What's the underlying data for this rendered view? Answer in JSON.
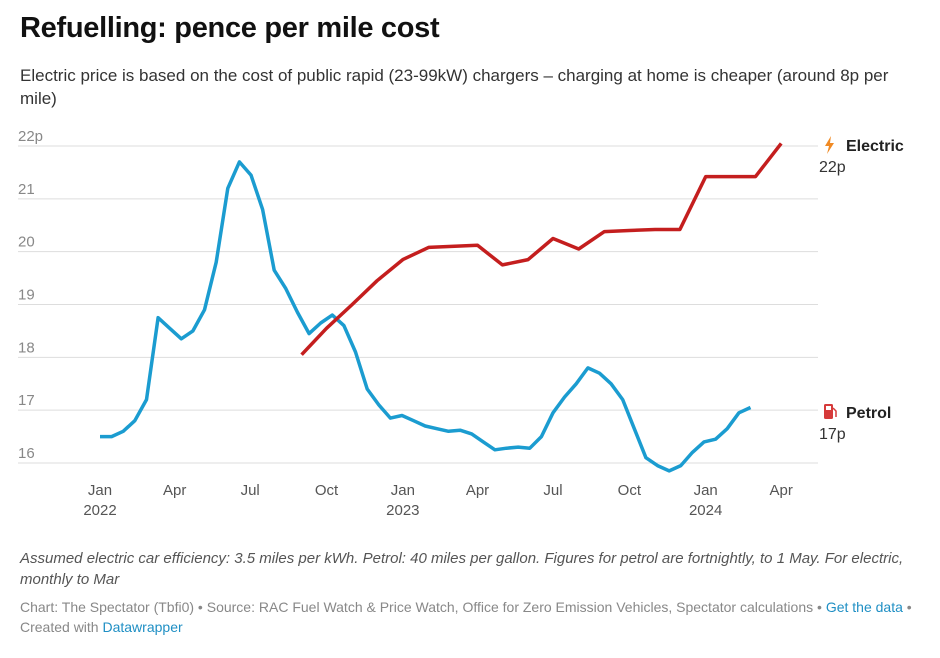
{
  "title": "Refuelling: pence per mile cost",
  "subtitle": "Electric price is based on the cost of public rapid (23-99kW) chargers – charging at home is cheaper (around 8p per mile)",
  "notes": "Assumed electric car efficiency: 3.5 miles per kWh. Petrol: 40 miles per gallon. Figures for petrol are fortnightly, to 1 May. For electric, monthly to Mar",
  "footer": {
    "chart_credit": "Chart: The Spectator (Tbfi0)",
    "sep1": " • ",
    "source": "Source: RAC Fuel Watch & Price Watch, Office for Zero Emission Vehicles, Spectator calculations",
    "sep2": " • ",
    "get_data": "Get the data",
    "sep3": " • ",
    "created_with": "Created with ",
    "datawrapper": "Datawrapper"
  },
  "chart_data": {
    "type": "line",
    "title": "Refuelling: pence per mile cost",
    "ylim": [
      16,
      22
    ],
    "y_ticks": [
      {
        "value": 22,
        "label": "22p"
      },
      {
        "value": 21,
        "label": "21"
      },
      {
        "value": 20,
        "label": "20"
      },
      {
        "value": 19,
        "label": "19"
      },
      {
        "value": 18,
        "label": "18"
      },
      {
        "value": 17,
        "label": "17"
      },
      {
        "value": 16,
        "label": "16"
      }
    ],
    "x_ticks": [
      {
        "date": "2022-01-01",
        "label": "Jan",
        "year": "2022"
      },
      {
        "date": "2022-04-01",
        "label": "Apr",
        "year": ""
      },
      {
        "date": "2022-07-01",
        "label": "Jul",
        "year": ""
      },
      {
        "date": "2022-10-01",
        "label": "Oct",
        "year": ""
      },
      {
        "date": "2023-01-01",
        "label": "Jan",
        "year": "2023"
      },
      {
        "date": "2023-04-01",
        "label": "Apr",
        "year": ""
      },
      {
        "date": "2023-07-01",
        "label": "Jul",
        "year": ""
      },
      {
        "date": "2023-10-01",
        "label": "Oct",
        "year": ""
      },
      {
        "date": "2024-01-01",
        "label": "Jan",
        "year": "2024"
      },
      {
        "date": "2024-04-01",
        "label": "Apr",
        "year": ""
      }
    ],
    "grid": true,
    "series": [
      {
        "name": "Petrol",
        "end_label": "17p",
        "color": "#1b9cd0",
        "icon": "fuel-pump-icon",
        "points": [
          [
            "2022-01-01",
            16.5
          ],
          [
            "2022-01-15",
            16.5
          ],
          [
            "2022-01-29",
            16.6
          ],
          [
            "2022-02-12",
            16.8
          ],
          [
            "2022-02-26",
            17.2
          ],
          [
            "2022-03-12",
            18.75
          ],
          [
            "2022-03-26",
            18.55
          ],
          [
            "2022-04-09",
            18.35
          ],
          [
            "2022-04-23",
            18.5
          ],
          [
            "2022-05-07",
            18.9
          ],
          [
            "2022-05-21",
            19.8
          ],
          [
            "2022-06-04",
            21.2
          ],
          [
            "2022-06-18",
            21.7
          ],
          [
            "2022-07-02",
            21.45
          ],
          [
            "2022-07-16",
            20.8
          ],
          [
            "2022-07-30",
            19.65
          ],
          [
            "2022-08-13",
            19.3
          ],
          [
            "2022-08-27",
            18.85
          ],
          [
            "2022-09-10",
            18.45
          ],
          [
            "2022-09-24",
            18.65
          ],
          [
            "2022-10-08",
            18.8
          ],
          [
            "2022-10-22",
            18.6
          ],
          [
            "2022-11-05",
            18.1
          ],
          [
            "2022-11-19",
            17.4
          ],
          [
            "2022-12-03",
            17.1
          ],
          [
            "2022-12-17",
            16.85
          ],
          [
            "2022-12-31",
            16.9
          ],
          [
            "2023-01-14",
            16.8
          ],
          [
            "2023-01-28",
            16.7
          ],
          [
            "2023-02-11",
            16.65
          ],
          [
            "2023-02-25",
            16.6
          ],
          [
            "2023-03-11",
            16.62
          ],
          [
            "2023-03-25",
            16.55
          ],
          [
            "2023-04-08",
            16.4
          ],
          [
            "2023-04-22",
            16.25
          ],
          [
            "2023-05-06",
            16.28
          ],
          [
            "2023-05-20",
            16.3
          ],
          [
            "2023-06-03",
            16.28
          ],
          [
            "2023-06-17",
            16.5
          ],
          [
            "2023-07-01",
            16.95
          ],
          [
            "2023-07-15",
            17.25
          ],
          [
            "2023-07-29",
            17.5
          ],
          [
            "2023-08-12",
            17.8
          ],
          [
            "2023-08-26",
            17.7
          ],
          [
            "2023-09-09",
            17.5
          ],
          [
            "2023-09-23",
            17.2
          ],
          [
            "2023-10-07",
            16.65
          ],
          [
            "2023-10-21",
            16.1
          ],
          [
            "2023-11-04",
            15.95
          ],
          [
            "2023-11-18",
            15.85
          ],
          [
            "2023-12-02",
            15.95
          ],
          [
            "2023-12-16",
            16.2
          ],
          [
            "2023-12-30",
            16.4
          ],
          [
            "2024-01-13",
            16.45
          ],
          [
            "2024-01-27",
            16.65
          ],
          [
            "2024-02-10",
            16.95
          ],
          [
            "2024-02-24",
            17.05
          ]
        ]
      },
      {
        "name": "Electric",
        "end_label": "22p",
        "color": "#c41e1e",
        "icon": "lightning-bolt-icon",
        "points": [
          [
            "2022-09-01",
            18.05
          ],
          [
            "2022-10-01",
            18.55
          ],
          [
            "2022-11-01",
            19.0
          ],
          [
            "2022-12-01",
            19.45
          ],
          [
            "2023-01-01",
            19.85
          ],
          [
            "2023-02-01",
            20.08
          ],
          [
            "2023-03-01",
            20.1
          ],
          [
            "2023-04-01",
            20.12
          ],
          [
            "2023-05-01",
            19.75
          ],
          [
            "2023-06-01",
            19.85
          ],
          [
            "2023-07-01",
            20.25
          ],
          [
            "2023-08-01",
            20.05
          ],
          [
            "2023-09-01",
            20.38
          ],
          [
            "2023-10-01",
            20.4
          ],
          [
            "2023-11-01",
            20.42
          ],
          [
            "2023-12-01",
            20.42
          ],
          [
            "2024-01-01",
            21.42
          ],
          [
            "2024-02-01",
            21.42
          ],
          [
            "2024-03-01",
            21.42
          ],
          [
            "2024-04-01",
            22.05
          ]
        ]
      }
    ]
  },
  "colors": {
    "petrol_line": "#1b9cd0",
    "electric_line": "#c41e1e",
    "grid": "#dddddd",
    "link": "#1f8fc4",
    "lightning_icon": "#f08a24",
    "pump_icon": "#d63a3a"
  }
}
